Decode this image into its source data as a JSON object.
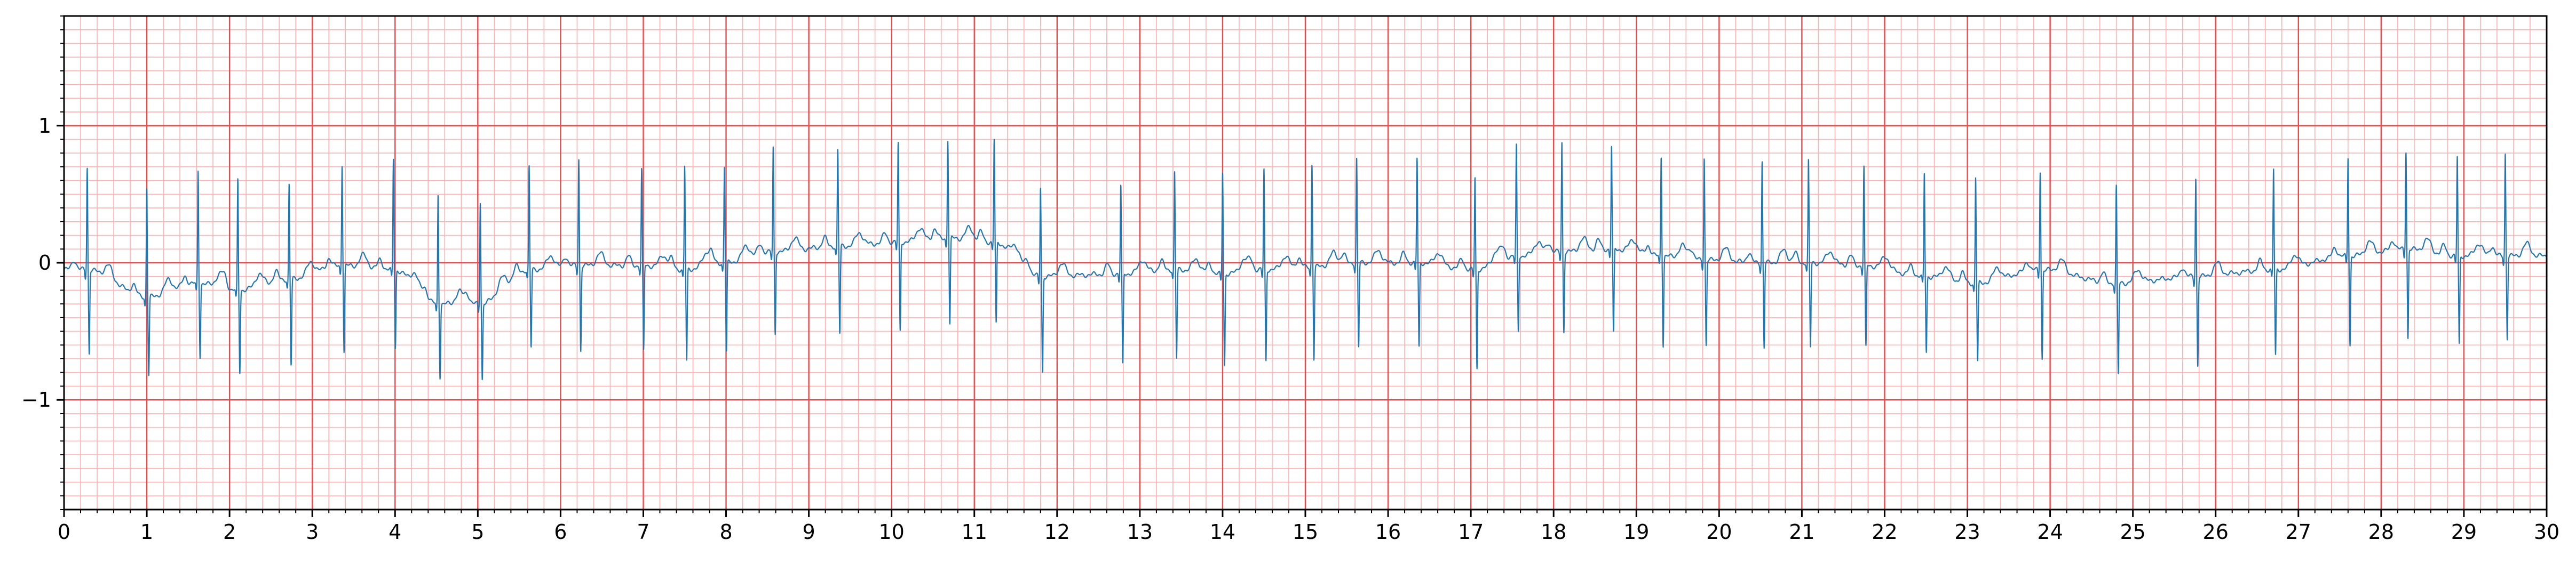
{
  "chart_data": {
    "type": "line",
    "title": "",
    "xlabel": "",
    "ylabel": "",
    "xlim": [
      0,
      30
    ],
    "ylim": [
      -1.8,
      1.8
    ],
    "x_ticks": [
      "0",
      "1",
      "2",
      "3",
      "4",
      "5",
      "6",
      "7",
      "8",
      "9",
      "10",
      "11",
      "12",
      "13",
      "14",
      "15",
      "16",
      "17",
      "18",
      "19",
      "20",
      "21",
      "22",
      "23",
      "24",
      "25",
      "26",
      "27",
      "28",
      "29",
      "30"
    ],
    "y_ticks": [
      {
        "value": 1,
        "label": "1"
      },
      {
        "value": 0,
        "label": "0"
      },
      {
        "value": -1,
        "label": "−1"
      }
    ],
    "grid": {
      "major_x_step": 1,
      "major_y_step": 1,
      "minor_x_step": 0.2,
      "minor_y_step": 0.1,
      "major_color": "#f04848",
      "minor_color": "#ffb0b0"
    },
    "line_color": "#1f77b4",
    "series": [
      {
        "beats": [
          {
            "t": 0.28,
            "r": 0.7,
            "s": -0.66,
            "base": -0.05
          },
          {
            "t": 1.0,
            "r": 0.55,
            "s": -0.82,
            "base": -0.25
          },
          {
            "t": 1.62,
            "r": 0.67,
            "s": -0.68,
            "base": -0.15
          },
          {
            "t": 2.1,
            "r": 0.6,
            "s": -0.8,
            "base": -0.2
          },
          {
            "t": 2.72,
            "r": 0.57,
            "s": -0.75,
            "base": -0.12
          },
          {
            "t": 3.36,
            "r": 0.72,
            "s": -0.65,
            "base": -0.02
          },
          {
            "t": 3.98,
            "r": 0.76,
            "s": -0.62,
            "base": -0.05
          },
          {
            "t": 4.52,
            "r": 0.5,
            "s": -0.83,
            "base": -0.3
          },
          {
            "t": 5.03,
            "r": 0.45,
            "s": -0.85,
            "base": -0.3
          },
          {
            "t": 5.62,
            "r": 0.7,
            "s": -0.62,
            "base": -0.05
          },
          {
            "t": 6.22,
            "r": 0.76,
            "s": -0.64,
            "base": -0.02
          },
          {
            "t": 6.98,
            "r": 0.68,
            "s": -0.65,
            "base": -0.02
          },
          {
            "t": 7.5,
            "r": 0.7,
            "s": -0.72,
            "base": -0.05
          },
          {
            "t": 7.98,
            "r": 0.7,
            "s": -0.65,
            "base": 0.0
          },
          {
            "t": 8.57,
            "r": 0.84,
            "s": -0.52,
            "base": 0.08
          },
          {
            "t": 9.35,
            "r": 0.82,
            "s": -0.52,
            "base": 0.12
          },
          {
            "t": 10.08,
            "r": 0.87,
            "s": -0.5,
            "base": 0.15
          },
          {
            "t": 10.68,
            "r": 0.9,
            "s": -0.45,
            "base": 0.18
          },
          {
            "t": 11.24,
            "r": 0.9,
            "s": -0.45,
            "base": 0.15
          },
          {
            "t": 11.8,
            "r": 0.55,
            "s": -0.8,
            "base": -0.1
          },
          {
            "t": 12.77,
            "r": 0.56,
            "s": -0.75,
            "base": -0.08
          },
          {
            "t": 13.42,
            "r": 0.66,
            "s": -0.7,
            "base": -0.05
          },
          {
            "t": 14.0,
            "r": 0.66,
            "s": -0.75,
            "base": -0.08
          },
          {
            "t": 14.5,
            "r": 0.68,
            "s": -0.72,
            "base": -0.05
          },
          {
            "t": 15.08,
            "r": 0.72,
            "s": -0.7,
            "base": -0.03
          },
          {
            "t": 15.62,
            "r": 0.76,
            "s": -0.62,
            "base": 0.0
          },
          {
            "t": 16.35,
            "r": 0.76,
            "s": -0.62,
            "base": 0.0
          },
          {
            "t": 17.05,
            "r": 0.62,
            "s": -0.78,
            "base": -0.05
          },
          {
            "t": 17.55,
            "r": 0.85,
            "s": -0.5,
            "base": 0.05
          },
          {
            "t": 18.1,
            "r": 0.88,
            "s": -0.5,
            "base": 0.08
          },
          {
            "t": 18.7,
            "r": 0.85,
            "s": -0.52,
            "base": 0.1
          },
          {
            "t": 19.3,
            "r": 0.78,
            "s": -0.6,
            "base": 0.05
          },
          {
            "t": 19.82,
            "r": 0.77,
            "s": -0.6,
            "base": 0.02
          },
          {
            "t": 20.52,
            "r": 0.74,
            "s": -0.62,
            "base": 0.0
          },
          {
            "t": 21.08,
            "r": 0.74,
            "s": -0.62,
            "base": 0.0
          },
          {
            "t": 21.75,
            "r": 0.7,
            "s": -0.62,
            "base": -0.02
          },
          {
            "t": 22.48,
            "r": 0.65,
            "s": -0.65,
            "base": -0.1
          },
          {
            "t": 23.1,
            "r": 0.62,
            "s": -0.72,
            "base": -0.15
          },
          {
            "t": 23.88,
            "r": 0.67,
            "s": -0.7,
            "base": -0.05
          },
          {
            "t": 24.8,
            "r": 0.56,
            "s": -0.82,
            "base": -0.15
          },
          {
            "t": 25.76,
            "r": 0.62,
            "s": -0.75,
            "base": -0.1
          },
          {
            "t": 26.7,
            "r": 0.68,
            "s": -0.68,
            "base": -0.05
          },
          {
            "t": 27.6,
            "r": 0.77,
            "s": -0.6,
            "base": 0.05
          },
          {
            "t": 28.3,
            "r": 0.82,
            "s": -0.55,
            "base": 0.1
          },
          {
            "t": 28.92,
            "r": 0.77,
            "s": -0.6,
            "base": 0.05
          },
          {
            "t": 29.5,
            "r": 0.8,
            "s": -0.55,
            "base": 0.05
          }
        ]
      }
    ]
  }
}
